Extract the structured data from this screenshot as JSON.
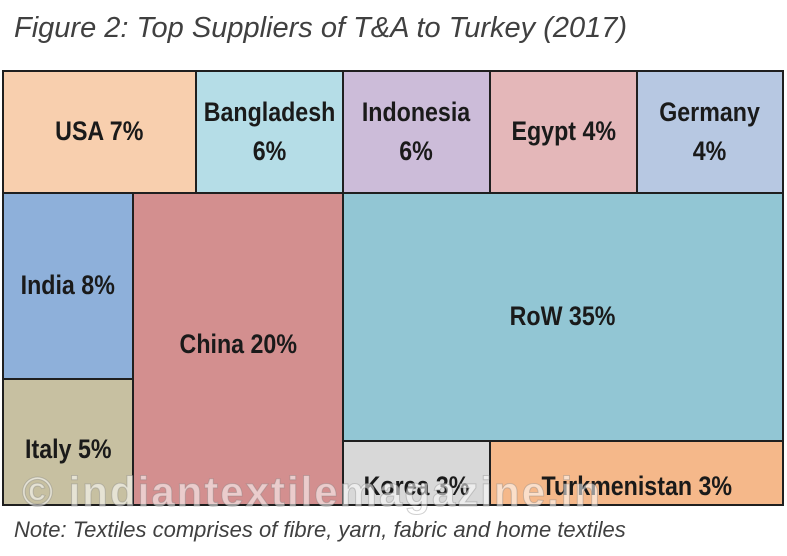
{
  "title": "Figure 2: Top Suppliers of T&A to Turkey (2017)",
  "note": "Note: Textiles comprises of fibre, yarn, fabric and home textiles",
  "watermark": "© indiantextilemagazine.in",
  "chart_data": {
    "type": "treemap",
    "title": "Figure 2: Top Suppliers of T&A to Turkey (2017)",
    "unit": "%",
    "items": [
      {
        "name": "USA",
        "value": 7,
        "label": "USA 7%",
        "color": "#f8cfae"
      },
      {
        "name": "Bangladesh",
        "value": 6,
        "label": "Bangladesh\n6%",
        "color": "#b5dde7"
      },
      {
        "name": "Indonesia",
        "value": 6,
        "label": "Indonesia\n6%",
        "color": "#ccbcd9"
      },
      {
        "name": "Egypt",
        "value": 4,
        "label": "Egypt 4%",
        "color": "#e4b7b9"
      },
      {
        "name": "Germany",
        "value": 4,
        "label": "Germany\n4%",
        "color": "#b7c8e2"
      },
      {
        "name": "India",
        "value": 8,
        "label": "India 8%",
        "color": "#8eb0da"
      },
      {
        "name": "Italy",
        "value": 5,
        "label": "Italy 5%",
        "color": "#c7c0a1"
      },
      {
        "name": "China",
        "value": 20,
        "label": "China 20%",
        "color": "#d38f8f"
      },
      {
        "name": "RoW",
        "value": 35,
        "label": "RoW 35%",
        "color": "#92c6d4"
      },
      {
        "name": "Korea",
        "value": 3,
        "label": "Korea 3%",
        "color": "#d8d8d8"
      },
      {
        "name": "Turkmenistan",
        "value": 3,
        "label": "Turkmenistan 3%",
        "color": "#f5b88a"
      }
    ]
  }
}
